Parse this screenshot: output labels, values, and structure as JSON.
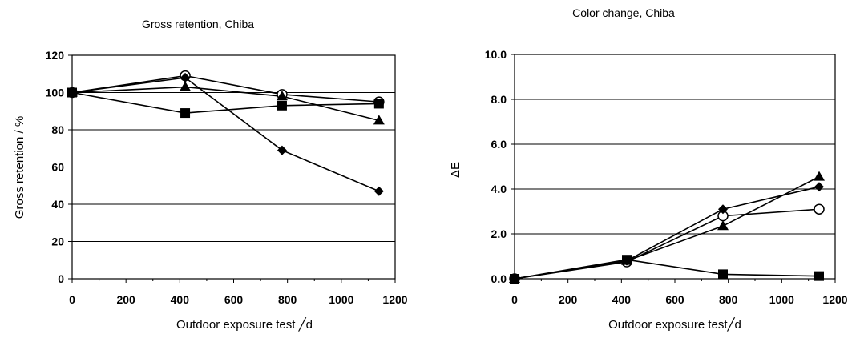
{
  "chart_data": [
    {
      "type": "line",
      "title": "Gross retention, Chiba",
      "xlabel": "Outdoor exposure test ╱d",
      "ylabel": "Gross retention / %",
      "xlim": [
        0,
        1200
      ],
      "ylim": [
        0,
        120
      ],
      "xticks": [
        "0",
        "200",
        "400",
        "600",
        "800",
        "1000",
        "1200"
      ],
      "yticks": [
        "0",
        "20",
        "40",
        "60",
        "80",
        "100",
        "120"
      ],
      "grid": "horizontal",
      "series": [
        {
          "marker": "circle-open",
          "x": [
            0,
            420,
            780,
            1140
          ],
          "y": [
            100,
            109,
            99,
            95
          ]
        },
        {
          "marker": "triangle",
          "x": [
            0,
            420,
            780,
            1140
          ],
          "y": [
            100,
            103,
            98,
            85
          ]
        },
        {
          "marker": "square",
          "x": [
            0,
            420,
            780,
            1140
          ],
          "y": [
            100,
            89,
            93,
            94
          ]
        },
        {
          "marker": "diamond",
          "x": [
            0,
            420,
            780,
            1140
          ],
          "y": [
            100,
            108,
            69,
            47
          ]
        }
      ]
    },
    {
      "type": "line",
      "title": "Color change, Chiba",
      "xlabel": "Outdoor exposure test╱d",
      "ylabel": "ΔE",
      "xlim": [
        0,
        1200
      ],
      "ylim": [
        0,
        10
      ],
      "xticks": [
        "0",
        "200",
        "400",
        "600",
        "800",
        "1000",
        "1200"
      ],
      "yticks": [
        "0.0",
        "2.0",
        "4.0",
        "6.0",
        "8.0",
        "10.0"
      ],
      "grid": "horizontal",
      "series": [
        {
          "marker": "circle-open",
          "x": [
            0,
            420,
            780,
            1140
          ],
          "y": [
            0.0,
            0.75,
            2.8,
            3.1
          ]
        },
        {
          "marker": "triangle",
          "x": [
            0,
            420,
            780,
            1140
          ],
          "y": [
            0.0,
            0.8,
            2.35,
            4.55
          ]
        },
        {
          "marker": "square",
          "x": [
            0,
            420,
            780,
            1140
          ],
          "y": [
            0.0,
            0.85,
            0.2,
            0.12
          ]
        },
        {
          "marker": "diamond",
          "x": [
            0,
            420,
            780,
            1140
          ],
          "y": [
            0.0,
            0.8,
            3.1,
            4.1
          ]
        }
      ]
    }
  ]
}
